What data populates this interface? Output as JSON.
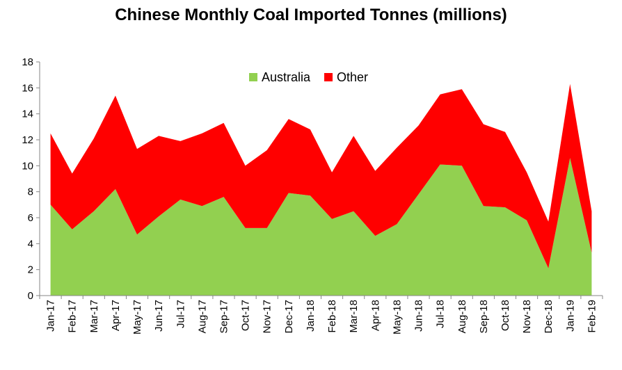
{
  "chart_data": {
    "type": "area",
    "stacked": true,
    "title": "Chinese Monthly Coal Imported Tonnes (millions)",
    "xlabel": "",
    "ylabel": "",
    "ylim": [
      0,
      18
    ],
    "yticks": [
      0,
      2,
      4,
      6,
      8,
      10,
      12,
      14,
      16,
      18
    ],
    "grid": false,
    "legend_position": "top-center",
    "categories": [
      "Jan-17",
      "Feb-17",
      "Mar-17",
      "Apr-17",
      "May-17",
      "Jun-17",
      "Jul-17",
      "Aug-17",
      "Sep-17",
      "Oct-17",
      "Nov-17",
      "Dec-17",
      "Jan-18",
      "Feb-18",
      "Mar-18",
      "Apr-18",
      "May-18",
      "Jun-18",
      "Jul-18",
      "Aug-18",
      "Sep-18",
      "Oct-18",
      "Nov-18",
      "Dec-18",
      "Jan-19",
      "Feb-19"
    ],
    "series": [
      {
        "name": "Australia",
        "color": "#92d050",
        "values": [
          7.0,
          5.1,
          6.5,
          8.2,
          4.7,
          6.1,
          7.4,
          6.9,
          7.6,
          5.2,
          5.2,
          7.9,
          7.7,
          5.9,
          6.5,
          4.6,
          5.5,
          7.8,
          10.1,
          10.0,
          6.9,
          6.8,
          5.8,
          2.1,
          10.6,
          3.3
        ]
      },
      {
        "name": "Other",
        "color": "#ff0000",
        "values": [
          5.5,
          4.3,
          5.6,
          7.2,
          6.6,
          6.2,
          4.5,
          5.6,
          5.7,
          4.8,
          6.0,
          5.7,
          5.1,
          3.6,
          5.8,
          5.0,
          5.9,
          5.3,
          5.4,
          5.9,
          6.3,
          5.8,
          3.7,
          3.6,
          5.7,
          3.2
        ]
      }
    ]
  }
}
